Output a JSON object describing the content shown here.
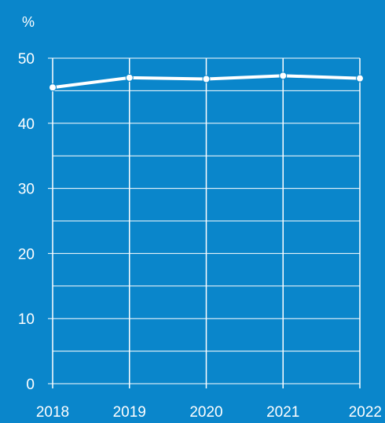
{
  "chart_data": {
    "type": "line",
    "unit_label": "%",
    "x": [
      "2018",
      "2019",
      "2020",
      "2021",
      "2022"
    ],
    "series": [
      {
        "values": [
          45.5,
          47.0,
          46.8,
          47.3,
          46.9
        ]
      }
    ],
    "ylim": [
      0,
      50
    ],
    "y_ticks": [
      0,
      10,
      20,
      30,
      40,
      50
    ],
    "grid": true,
    "colors": {
      "background": "#0a86cb",
      "line": "#ffffff",
      "grid": "#ffffff"
    }
  }
}
